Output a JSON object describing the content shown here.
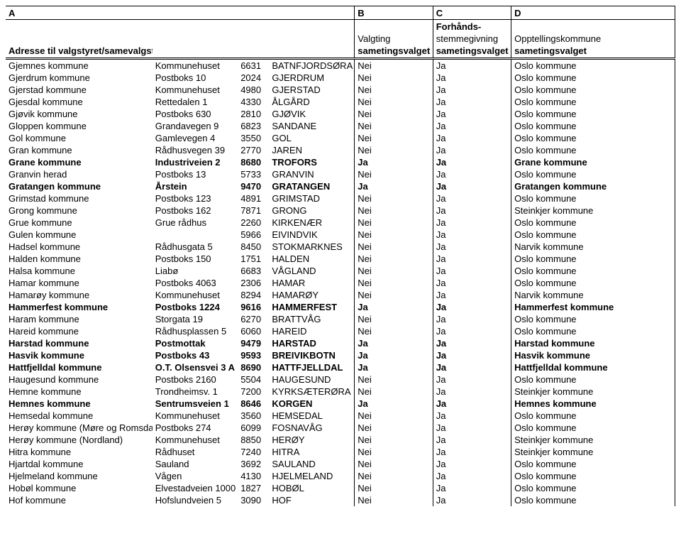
{
  "header": {
    "col_letters": [
      "A",
      "B",
      "C",
      "D"
    ],
    "row1": [
      "",
      "",
      "",
      "",
      "",
      "Forhånds-",
      ""
    ],
    "row2": [
      "",
      "",
      "",
      "",
      "Valgting",
      "stemmegivning",
      "Opptellingskommune"
    ],
    "row3": [
      "Adresse til valgstyret/samevalgstyre i",
      "",
      "",
      "",
      "sametingsvalget",
      "sametingsvalget",
      "sametingsvalget"
    ]
  },
  "col_widths": [
    "206px",
    "120px",
    "44px",
    "120px",
    "110px",
    "110px",
    "230px"
  ],
  "rows": [
    {
      "b": false,
      "c": [
        "Gjemnes kommune",
        "Kommunehuset",
        "6631",
        "BATNFJORDSØRA",
        "Nei",
        "Ja",
        "Oslo kommune"
      ]
    },
    {
      "b": false,
      "c": [
        "Gjerdrum kommune",
        "Postboks 10",
        "2024",
        "GJERDRUM",
        "Nei",
        "Ja",
        "Oslo kommune"
      ]
    },
    {
      "b": false,
      "c": [
        "Gjerstad kommune",
        "Kommunehuset",
        "4980",
        "GJERSTAD",
        "Nei",
        "Ja",
        "Oslo kommune"
      ]
    },
    {
      "b": false,
      "c": [
        "Gjesdal kommune",
        "Rettedalen 1",
        "4330",
        "ÅLGÅRD",
        "Nei",
        "Ja",
        "Oslo kommune"
      ]
    },
    {
      "b": false,
      "c": [
        "Gjøvik kommune",
        "Postboks 630",
        "2810",
        "GJØVIK",
        "Nei",
        "Ja",
        "Oslo kommune"
      ]
    },
    {
      "b": false,
      "c": [
        "Gloppen kommune",
        "Grandavegen 9",
        "6823",
        "SANDANE",
        "Nei",
        "Ja",
        "Oslo kommune"
      ]
    },
    {
      "b": false,
      "c": [
        "Gol kommune",
        "Gamlevegen 4",
        "3550",
        "GOL",
        "Nei",
        "Ja",
        "Oslo kommune"
      ]
    },
    {
      "b": false,
      "c": [
        "Gran kommune",
        "Rådhusvegen 39",
        "2770",
        "JAREN",
        "Nei",
        "Ja",
        "Oslo kommune"
      ]
    },
    {
      "b": true,
      "c": [
        "Grane kommune",
        "Industriveien 2",
        "8680",
        "TROFORS",
        "Ja",
        "Ja",
        "Grane kommune"
      ]
    },
    {
      "b": false,
      "c": [
        "Granvin herad",
        "Postboks 13",
        "5733",
        "GRANVIN",
        "Nei",
        "Ja",
        "Oslo kommune"
      ]
    },
    {
      "b": true,
      "c": [
        "Gratangen kommune",
        "Årstein",
        "9470",
        "GRATANGEN",
        "Ja",
        "Ja",
        "Gratangen kommune"
      ]
    },
    {
      "b": false,
      "c": [
        "Grimstad kommune",
        "Postboks 123",
        "4891",
        "GRIMSTAD",
        "Nei",
        "Ja",
        "Oslo kommune"
      ]
    },
    {
      "b": false,
      "c": [
        "Grong kommune",
        "Postboks 162",
        "7871",
        "GRONG",
        "Nei",
        "Ja",
        "Steinkjer kommune"
      ]
    },
    {
      "b": false,
      "c": [
        "Grue kommune",
        "Grue rådhus",
        "2260",
        "KIRKENÆR",
        "Nei",
        "Ja",
        "Oslo kommune"
      ]
    },
    {
      "b": false,
      "c": [
        "Gulen kommune",
        "",
        "5966",
        "EIVINDVIK",
        "Nei",
        "Ja",
        "Oslo kommune"
      ]
    },
    {
      "b": false,
      "c": [
        "Hadsel kommune",
        "Rådhusgata 5",
        "8450",
        "STOKMARKNES",
        "Nei",
        "Ja",
        "Narvik kommune"
      ]
    },
    {
      "b": false,
      "c": [
        "Halden kommune",
        "Postboks 150",
        "1751",
        "HALDEN",
        "Nei",
        "Ja",
        "Oslo kommune"
      ]
    },
    {
      "b": false,
      "c": [
        "Halsa kommune",
        "Liabø",
        "6683",
        "VÅGLAND",
        "Nei",
        "Ja",
        "Oslo kommune"
      ]
    },
    {
      "b": false,
      "c": [
        "Hamar kommune",
        "Postboks 4063",
        "2306",
        "HAMAR",
        "Nei",
        "Ja",
        "Oslo kommune"
      ]
    },
    {
      "b": false,
      "c": [
        "Hamarøy kommune",
        "Kommunehuset",
        "8294",
        "HAMARØY",
        "Nei",
        "Ja",
        "Narvik kommune"
      ]
    },
    {
      "b": true,
      "c": [
        "Hammerfest kommune",
        "Postboks 1224",
        "9616",
        "HAMMERFEST",
        "Ja",
        "Ja",
        "Hammerfest kommune"
      ]
    },
    {
      "b": false,
      "c": [
        "Haram kommune",
        "Storgata 19",
        "6270",
        "BRATTVÅG",
        "Nei",
        "Ja",
        "Oslo kommune"
      ]
    },
    {
      "b": false,
      "c": [
        "Hareid kommune",
        "Rådhusplassen 5",
        "6060",
        "HAREID",
        "Nei",
        "Ja",
        "Oslo kommune"
      ]
    },
    {
      "b": true,
      "c": [
        "Harstad kommune",
        "Postmottak",
        "9479",
        "HARSTAD",
        "Ja",
        "Ja",
        "Harstad kommune"
      ]
    },
    {
      "b": true,
      "c": [
        "Hasvik kommune",
        "Postboks 43",
        "9593",
        "BREIVIKBOTN",
        "Ja",
        "Ja",
        "Hasvik kommune"
      ]
    },
    {
      "b": true,
      "c": [
        "Hattfjelldal kommune",
        "O.T. Olsensvei  3 A",
        "8690",
        "HATTFJELLDAL",
        "Ja",
        "Ja",
        "Hattfjelldal kommune"
      ]
    },
    {
      "b": false,
      "c": [
        "Haugesund kommune",
        "Postboks 2160",
        "5504",
        "HAUGESUND",
        "Nei",
        "Ja",
        "Oslo kommune"
      ]
    },
    {
      "b": false,
      "c": [
        "Hemne kommune",
        "Trondheimsv. 1",
        "7200",
        "KYRKSÆTERØRA",
        "Nei",
        "Ja",
        "Steinkjer kommune"
      ]
    },
    {
      "b": true,
      "c": [
        "Hemnes kommune",
        "Sentrumsveien 1",
        "8646",
        "KORGEN",
        "Ja",
        "Ja",
        "Hemnes kommune"
      ]
    },
    {
      "b": false,
      "c": [
        "Hemsedal kommune",
        "Kommunehuset",
        "3560",
        "HEMSEDAL",
        "Nei",
        "Ja",
        "Oslo kommune"
      ]
    },
    {
      "b": false,
      "c": [
        "Herøy kommune (Møre og Romsdal)",
        "Postboks 274",
        "6099",
        "FOSNAVÅG",
        "Nei",
        "Ja",
        "Oslo kommune"
      ]
    },
    {
      "b": false,
      "c": [
        "Herøy kommune (Nordland)",
        "Kommunehuset",
        "8850",
        "HERØY",
        "Nei",
        "Ja",
        "Steinkjer kommune"
      ]
    },
    {
      "b": false,
      "c": [
        "Hitra kommune",
        "Rådhuset",
        "7240",
        "HITRA",
        "Nei",
        "Ja",
        "Steinkjer kommune"
      ]
    },
    {
      "b": false,
      "c": [
        "Hjartdal kommune",
        "Sauland",
        "3692",
        "SAULAND",
        "Nei",
        "Ja",
        "Oslo kommune"
      ]
    },
    {
      "b": false,
      "c": [
        "Hjelmeland kommune",
        "Vågen",
        "4130",
        "HJELMELAND",
        "Nei",
        "Ja",
        "Oslo kommune"
      ]
    },
    {
      "b": false,
      "c": [
        "Hobøl kommune",
        "Elvestadveien 1000",
        "1827",
        "HOBØL",
        "Nei",
        "Ja",
        "Oslo kommune"
      ]
    },
    {
      "b": false,
      "c": [
        "Hof kommune",
        "Hofslundveien 5",
        "3090",
        "HOF",
        "Nei",
        "Ja",
        "Oslo kommune"
      ]
    }
  ]
}
